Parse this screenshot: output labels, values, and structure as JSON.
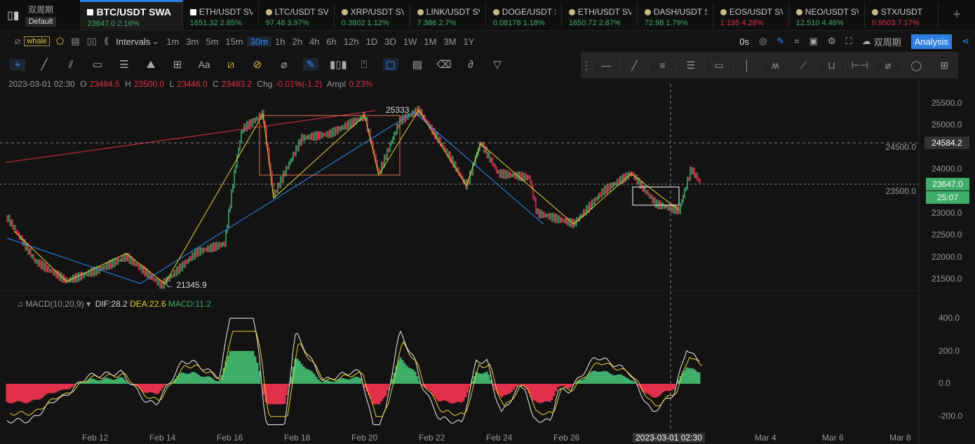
{
  "header": {
    "layout_label": "双周期",
    "layout_sub": "Default",
    "tabs": [
      {
        "symbol": "BTC/USDT SWA",
        "price": "23647.0",
        "change": "2.16%",
        "trend": "up",
        "active": true
      },
      {
        "symbol": "ETH/USDT SV",
        "price": "1651.32",
        "change": "2.85%",
        "trend": "up"
      },
      {
        "symbol": "LTC/USDT SV",
        "price": "97.48",
        "change": "3.97%",
        "trend": "up"
      },
      {
        "symbol": "XRP/USDT SV",
        "price": "0.3802",
        "change": "1.12%",
        "trend": "up"
      },
      {
        "symbol": "LINK/USDT SV",
        "price": "7.386",
        "change": "2.7%",
        "trend": "up"
      },
      {
        "symbol": "DOGE/USDT S",
        "price": "0.08178",
        "change": "1.18%",
        "trend": "up"
      },
      {
        "symbol": "ETH/USDT SV",
        "price": "1650.72",
        "change": "2.87%",
        "trend": "up"
      },
      {
        "symbol": "DASH/USDT S",
        "price": "72.98",
        "change": "1.79%",
        "trend": "up"
      },
      {
        "symbol": "EOS/USDT SV",
        "price": "1.195",
        "change": "4.28%",
        "trend": "down"
      },
      {
        "symbol": "NEO/USDT SV",
        "price": "12.510",
        "change": "4.46%",
        "trend": "up"
      },
      {
        "symbol": "STX/USDT",
        "price": "0.9503",
        "change": "7.17%",
        "trend": "down"
      }
    ]
  },
  "toolbar": {
    "indicator_tag": "whale",
    "intervals_label": "Intervals",
    "intervals": [
      "1m",
      "3m",
      "5m",
      "15m",
      "30m",
      "1h",
      "2h",
      "4h",
      "6h",
      "12h",
      "1D",
      "3D",
      "1W",
      "1M",
      "3M",
      "1Y"
    ],
    "selected_interval": "30m",
    "countdown": "0s",
    "layout_select": "双周期",
    "analysis": "Analysis"
  },
  "ohlc": {
    "time": "2023-03-01 02:30",
    "o_label": "O",
    "o": "23484.5",
    "h_label": "H",
    "h": "23500.0",
    "l_label": "L",
    "l": "23446.0",
    "c_label": "C",
    "c": "23483.2",
    "chg_label": "Chg",
    "chg": "-0.01%(-1.2)",
    "ampl_label": "Ampl",
    "ampl": "0.23%"
  },
  "macd": {
    "label": "MACD(10,20,9)",
    "dif": "DIF:28.2",
    "dea": "DEA:22.6",
    "macd": "MACD:11.2",
    "ticks": [
      "400.0",
      "200.0",
      "0.0",
      "-200.0"
    ]
  },
  "colors": {
    "up": "#3fae6a",
    "down": "#e0304a",
    "accent": "#2f7fe0"
  },
  "chart_data": {
    "type": "line",
    "symbol": "BTC/USDT",
    "ylim": [
      21200,
      25800
    ],
    "y_ticks": [
      "25500.0",
      "25000.0",
      "24500.0",
      "24000.0",
      "23500.0",
      "23000.0",
      "22500.0",
      "22000.0",
      "21500.0"
    ],
    "x_ticks": [
      "Feb 12",
      "Feb 14",
      "Feb 16",
      "Feb 18",
      "Feb 20",
      "Feb 22",
      "Feb 24",
      "Feb 26",
      "Mar 4",
      "Mar 6",
      "Mar 8"
    ],
    "crosshair_time": "2023-03-01 02:30",
    "crosshair_price": "24584.2",
    "last_price": "23647.0",
    "countdown": "25:07",
    "high_label": "25333",
    "low_label": "← 21345.9",
    "points": [
      [
        "2023-02-09 09:30",
        22900
      ],
      [
        "2023-02-10 05:30",
        21900
      ],
      [
        "2023-02-11 04:00",
        21450
      ],
      [
        "2023-02-12 02:30",
        21700
      ],
      [
        "2023-02-12 22:30",
        22000
      ],
      [
        "2023-02-13 23:30",
        21350
      ],
      [
        "2023-02-15 00:30",
        22100
      ],
      [
        "2023-02-15 20:30",
        22300
      ],
      [
        "2023-02-16 04:00",
        24000
      ],
      [
        "2023-02-16 09:00",
        24900
      ],
      [
        "2023-02-17 00:00",
        25250
      ],
      [
        "2023-02-17 07:30",
        23400
      ],
      [
        "2023-02-18 03:30",
        24700
      ],
      [
        "2023-02-18 23:30",
        24800
      ],
      [
        "2023-02-20 00:30",
        25200
      ],
      [
        "2023-02-20 10:30",
        23900
      ],
      [
        "2023-02-21 01:30",
        25100
      ],
      [
        "2023-02-21 15:00",
        25333
      ],
      [
        "2023-02-22 12:30",
        24300
      ],
      [
        "2023-02-23 01:00",
        23600
      ],
      [
        "2023-02-23 11:00",
        24600
      ],
      [
        "2023-02-23 23:30",
        23900
      ],
      [
        "2023-02-24 22:00",
        23800
      ],
      [
        "2023-02-25 03:00",
        23000
      ],
      [
        "2023-02-26 05:30",
        22750
      ],
      [
        "2023-02-27 02:30",
        23500
      ],
      [
        "2023-02-27 22:30",
        23900
      ],
      [
        "2023-02-28 16:00",
        23200
      ],
      [
        "2023-03-01 08:30",
        23050
      ],
      [
        "2023-03-01 17:00",
        24000
      ],
      [
        "2023-03-02 00:30",
        23647
      ]
    ]
  }
}
